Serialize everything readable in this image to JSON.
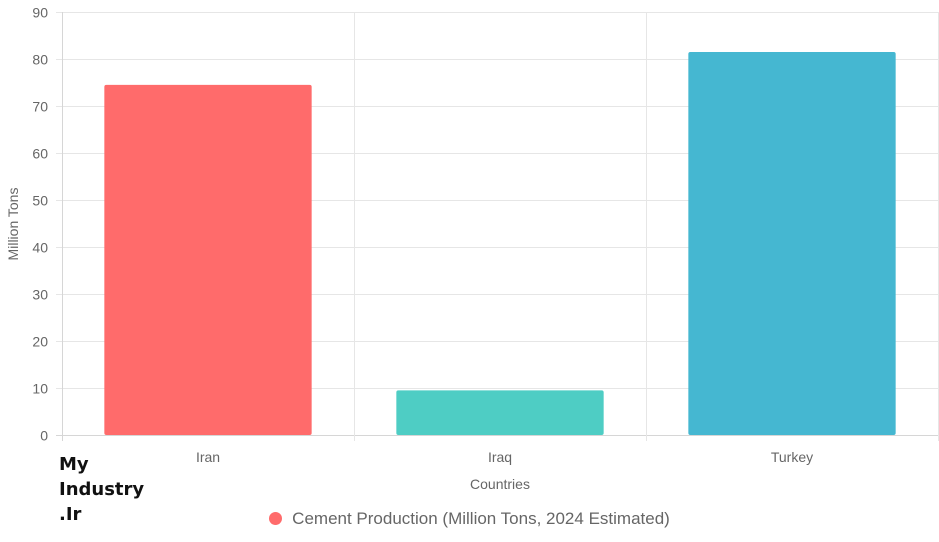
{
  "chart_data": {
    "type": "bar",
    "title": "",
    "xlabel": "Countries",
    "ylabel": "Million Tons",
    "ylim": [
      0,
      90
    ],
    "yticks": [
      0,
      10,
      20,
      30,
      40,
      50,
      60,
      70,
      80,
      90
    ],
    "categories": [
      "Iran",
      "Iraq",
      "Turkey"
    ],
    "series": [
      {
        "name": "Cement Production (Million Tons, 2024 Estimated)",
        "values": [
          74.5,
          9.5,
          81.5
        ],
        "colors": [
          "#FF6B6B",
          "#4ECDC4",
          "#45B7D1"
        ]
      }
    ],
    "legend": {
      "position": "bottom",
      "label": "Cement Production (Million Tons, 2024 Estimated)",
      "color": "#FF6B6B"
    },
    "grid": true
  },
  "watermark": {
    "lines": [
      "My",
      "Industry",
      ".Ir"
    ]
  }
}
